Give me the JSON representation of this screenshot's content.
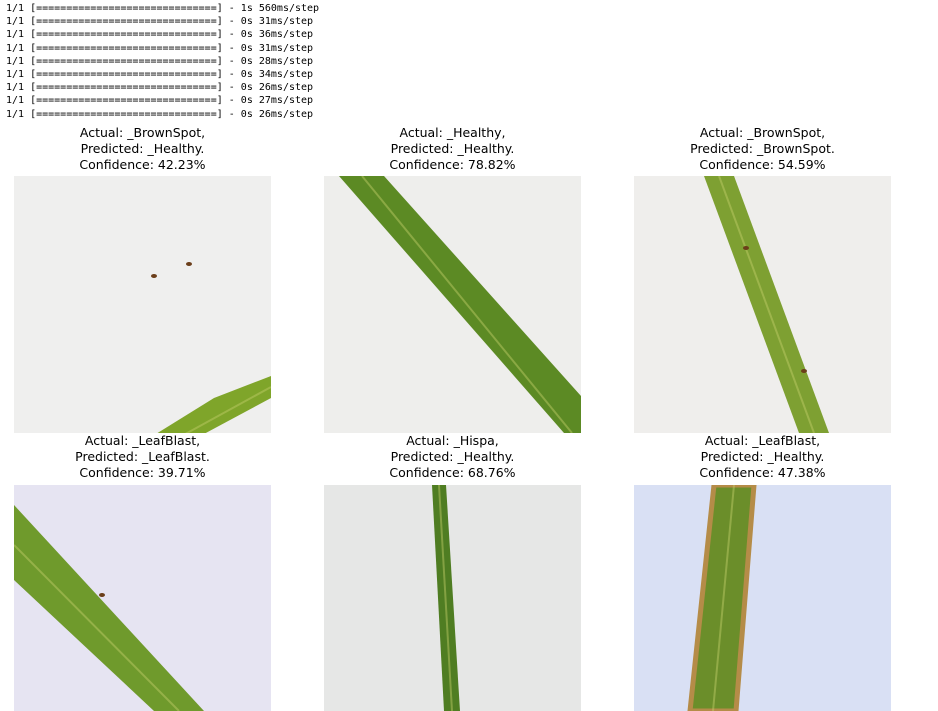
{
  "log_lines": [
    "1/1 [==============================] - 1s 560ms/step",
    "1/1 [==============================] - 0s 31ms/step",
    "1/1 [==============================] - 0s 36ms/step",
    "1/1 [==============================] - 0s 31ms/step",
    "1/1 [==============================] - 0s 28ms/step",
    "1/1 [==============================] - 0s 34ms/step",
    "1/1 [==============================] - 0s 26ms/step",
    "1/1 [==============================] - 0s 27ms/step",
    "1/1 [==============================] - 0s 26ms/step"
  ],
  "predictions": [
    {
      "actual": "Actual: _BrownSpot,",
      "predicted": "Predicted: _Healthy.",
      "confidence": "Confidence: 42.23%",
      "background_color": "#efefee",
      "leaf_color": "#7fa52a"
    },
    {
      "actual": "Actual: _Healthy,",
      "predicted": "Predicted: _Healthy.",
      "confidence": "Confidence: 78.82%",
      "background_color": "#eeeeec",
      "leaf_color": "#5c8a24"
    },
    {
      "actual": "Actual: _BrownSpot,",
      "predicted": "Predicted: _BrownSpot.",
      "confidence": "Confidence: 54.59%",
      "background_color": "#efeeec",
      "leaf_color": "#7ea032"
    },
    {
      "actual": "Actual: _LeafBlast,",
      "predicted": "Predicted: _LeafBlast.",
      "confidence": "Confidence: 39.71%",
      "background_color": "#e6e4f2",
      "leaf_color": "#6f9a2c"
    },
    {
      "actual": "Actual: _Hispa,",
      "predicted": "Predicted: _Healthy.",
      "confidence": "Confidence: 68.76%",
      "background_color": "#e6e7e6",
      "leaf_color": "#4f7d22"
    },
    {
      "actual": "Actual: _LeafBlast,",
      "predicted": "Predicted: _Healthy.",
      "confidence": "Confidence: 47.38%",
      "background_color": "#d9e0f4",
      "leaf_color": "#6b8e2a"
    }
  ]
}
